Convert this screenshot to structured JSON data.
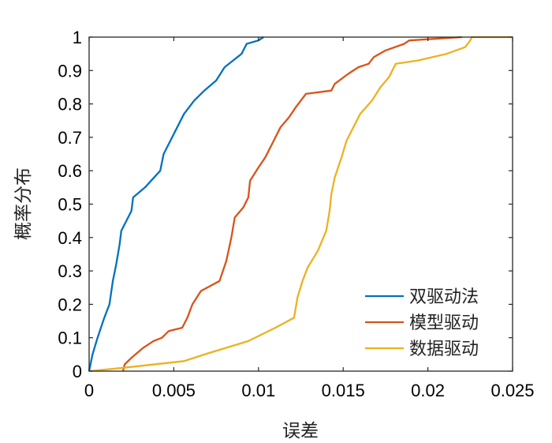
{
  "chart_data": {
    "type": "line",
    "title": "",
    "xlabel": "误差",
    "ylabel": "概率分布",
    "xlim": [
      0,
      0.025
    ],
    "ylim": [
      0,
      1
    ],
    "x_ticks": [
      "0",
      "0.005",
      "0.01",
      "0.015",
      "0.02",
      "0.025"
    ],
    "y_ticks": [
      "0",
      "0.1",
      "0.2",
      "0.3",
      "0.4",
      "0.5",
      "0.6",
      "0.7",
      "0.8",
      "0.9",
      "1"
    ],
    "grid": false,
    "legend_position": "bottom-right",
    "series": [
      {
        "name": "双驱动法",
        "color": "#0072BD",
        "points": [
          [
            0,
            0
          ],
          [
            0.0002,
            0.05
          ],
          [
            0.0005,
            0.1
          ],
          [
            0.0009,
            0.16
          ],
          [
            0.0012,
            0.2
          ],
          [
            0.0014,
            0.27
          ],
          [
            0.0016,
            0.32
          ],
          [
            0.0018,
            0.38
          ],
          [
            0.0019,
            0.42
          ],
          [
            0.0022,
            0.45
          ],
          [
            0.0025,
            0.48
          ],
          [
            0.0026,
            0.52
          ],
          [
            0.0033,
            0.55
          ],
          [
            0.0042,
            0.6
          ],
          [
            0.0044,
            0.65
          ],
          [
            0.005,
            0.71
          ],
          [
            0.0056,
            0.77
          ],
          [
            0.0062,
            0.81
          ],
          [
            0.0068,
            0.84
          ],
          [
            0.0075,
            0.87
          ],
          [
            0.008,
            0.91
          ],
          [
            0.0085,
            0.93
          ],
          [
            0.009,
            0.95
          ],
          [
            0.0093,
            0.98
          ],
          [
            0.01,
            0.99
          ],
          [
            0.0103,
            1
          ]
        ]
      },
      {
        "name": "模型驱动",
        "color": "#D95319",
        "points": [
          [
            0.002,
            0
          ],
          [
            0.0021,
            0.02
          ],
          [
            0.0025,
            0.04
          ],
          [
            0.0032,
            0.07
          ],
          [
            0.0038,
            0.09
          ],
          [
            0.0043,
            0.1
          ],
          [
            0.0047,
            0.12
          ],
          [
            0.0055,
            0.13
          ],
          [
            0.0058,
            0.16
          ],
          [
            0.0061,
            0.2
          ],
          [
            0.0066,
            0.24
          ],
          [
            0.0077,
            0.27
          ],
          [
            0.0081,
            0.33
          ],
          [
            0.0084,
            0.4
          ],
          [
            0.0086,
            0.46
          ],
          [
            0.0091,
            0.49
          ],
          [
            0.0094,
            0.52
          ],
          [
            0.0095,
            0.57
          ],
          [
            0.01,
            0.61
          ],
          [
            0.0104,
            0.64
          ],
          [
            0.0108,
            0.68
          ],
          [
            0.0113,
            0.73
          ],
          [
            0.0118,
            0.76
          ],
          [
            0.0122,
            0.79
          ],
          [
            0.0128,
            0.83
          ],
          [
            0.0143,
            0.84
          ],
          [
            0.0145,
            0.86
          ],
          [
            0.0153,
            0.89
          ],
          [
            0.0159,
            0.91
          ],
          [
            0.0165,
            0.92
          ],
          [
            0.0168,
            0.94
          ],
          [
            0.0175,
            0.96
          ],
          [
            0.0186,
            0.98
          ],
          [
            0.0189,
            0.99
          ],
          [
            0.022,
            1
          ]
        ]
      },
      {
        "name": "数据驱动",
        "color": "#EDB120",
        "points": [
          [
            0,
            0
          ],
          [
            0.002,
            0.01
          ],
          [
            0.0056,
            0.03
          ],
          [
            0.0068,
            0.05
          ],
          [
            0.0094,
            0.09
          ],
          [
            0.011,
            0.13
          ],
          [
            0.0121,
            0.16
          ],
          [
            0.0123,
            0.22
          ],
          [
            0.0126,
            0.27
          ],
          [
            0.0129,
            0.31
          ],
          [
            0.0135,
            0.36
          ],
          [
            0.014,
            0.42
          ],
          [
            0.0142,
            0.48
          ],
          [
            0.0143,
            0.53
          ],
          [
            0.0145,
            0.58
          ],
          [
            0.0149,
            0.64
          ],
          [
            0.0152,
            0.69
          ],
          [
            0.0156,
            0.73
          ],
          [
            0.016,
            0.77
          ],
          [
            0.0167,
            0.81
          ],
          [
            0.0172,
            0.85
          ],
          [
            0.0177,
            0.88
          ],
          [
            0.0181,
            0.92
          ],
          [
            0.0194,
            0.93
          ],
          [
            0.0211,
            0.95
          ],
          [
            0.0222,
            0.97
          ],
          [
            0.0225,
            0.99
          ],
          [
            0.0226,
            1
          ],
          [
            0.025,
            1
          ]
        ]
      }
    ]
  }
}
